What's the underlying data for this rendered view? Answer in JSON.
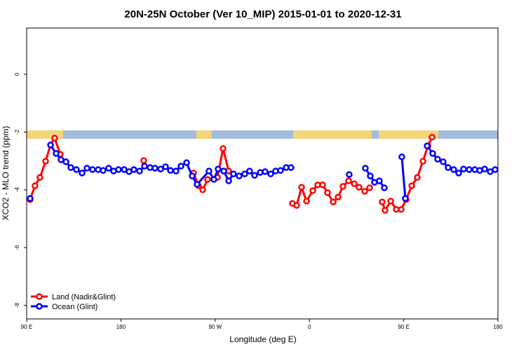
{
  "chart_data": {
    "type": "line",
    "title": "20N-25N October (Ver 10_MIP)   2015-01-01 to 2020-12-31",
    "x_label": "Longitude (deg E)",
    "y_label": "XCO2 - MLO trend (ppm)",
    "xlim": [
      90,
      540
    ],
    "xticks": [
      {
        "value": 90,
        "label": "90 E"
      },
      180,
      {
        "value": 270,
        "label": "90 W"
      },
      {
        "value": 360,
        "label": "0"
      },
      {
        "value": 450,
        "label": "90 E"
      },
      {
        "value": 540,
        "label": "180"
      }
    ],
    "ylim": [
      -8.47,
      1.6
    ],
    "yticks": [
      -8,
      -6,
      -4,
      -2,
      0
    ],
    "legend": "bottomleft",
    "series": [
      {
        "name": "Land (Nadir&Glint)",
        "color": "#ff0000",
        "x": [
          93.3,
          98,
          102.7,
          108.1,
          112.8,
          116.8,
          122.1,
          null,
          201.8,
          null,
          249.4,
          254.1,
          258.1,
          262.8,
          272.2,
          277.5,
          282.9,
          null,
          343.8,
          347.8,
          352.5,
          357.2,
          363.2,
          367.9,
          372.6,
          377.3,
          382.7,
          387.4,
          392,
          397.4,
          402.8,
          407.4,
          412.8,
          417.5,
          null,
          429.5,
          432.2,
          437.6,
          442.9,
          447.6,
          452.3,
          457.7,
          463,
          468.4,
          473.1,
          477.1
        ],
        "values": [
          -4.34,
          -3.86,
          -3.57,
          -3.01,
          -2.45,
          -2.21,
          -2.77,
          null,
          -2.99,
          null,
          -3.42,
          -3.86,
          -4.0,
          -3.64,
          -3.57,
          -2.57,
          -3.35,
          null,
          -4.47,
          -4.54,
          -3.91,
          -4.39,
          -4.03,
          -3.83,
          -3.83,
          -4.1,
          -4.42,
          -4.25,
          -3.88,
          -3.69,
          -3.79,
          -3.91,
          -4.05,
          -3.93,
          null,
          -4.42,
          -4.71,
          -4.39,
          -4.68,
          -4.68,
          -4.34,
          -3.86,
          -3.57,
          -3.01,
          -2.48,
          -2.18
        ]
      },
      {
        "name": "Ocean (Glint)",
        "color": "#0000ff",
        "x": [
          93.3,
          null,
          112.8,
          118.1,
          122.8,
          127.5,
          132.2,
          137.5,
          142.9,
          147.6,
          152.9,
          158.3,
          163,
          168.3,
          173,
          177.7,
          183.1,
          187.8,
          192.4,
          197.8,
          202.5,
          207.8,
          212.5,
          217.9,
          222.6,
          227.3,
          232.6,
          237.3,
          242.7,
          248,
          252.7,
          264.1,
          268.8,
          272.8,
          278.2,
          282.9,
          287.5,
          292.9,
          298.2,
          302.9,
          307.6,
          313,
          317.7,
          323,
          327.7,
          332.4,
          337.8,
          342.4,
          null,
          398,
          null,
          413.4,
          418.1,
          422.1,
          426.8,
          431.5,
          null,
          448.2,
          451.6,
          null,
          472.4,
          477.7,
          482.4,
          487.7,
          492.4,
          497.8,
          502.5,
          507.2,
          512.5,
          517.9,
          522.6,
          527.3,
          532.6,
          537.3
        ],
        "values": [
          -4.3,
          null,
          -2.45,
          -2.74,
          -2.96,
          -3.03,
          -3.23,
          -3.3,
          -3.42,
          -3.25,
          -3.3,
          -3.3,
          -3.33,
          -3.25,
          -3.35,
          -3.3,
          -3.3,
          -3.37,
          -3.3,
          -3.35,
          -3.18,
          -3.23,
          -3.25,
          -3.28,
          -3.2,
          -3.33,
          -3.35,
          -3.18,
          -3.06,
          -3.52,
          -3.81,
          -3.35,
          -3.64,
          -3.28,
          -3.35,
          -3.69,
          -3.45,
          -3.52,
          -3.45,
          -3.35,
          -3.5,
          -3.4,
          -3.37,
          -3.45,
          -3.35,
          -3.33,
          -3.23,
          -3.23,
          null,
          -3.47,
          null,
          -3.25,
          -3.52,
          -3.74,
          -3.69,
          -3.93,
          null,
          -2.86,
          -4.3,
          null,
          -2.48,
          -2.74,
          -2.94,
          -3.03,
          -3.23,
          -3.3,
          -3.42,
          -3.28,
          -3.3,
          -3.3,
          -3.33,
          -3.28,
          -3.37,
          -3.3
        ]
      }
    ]
  }
}
